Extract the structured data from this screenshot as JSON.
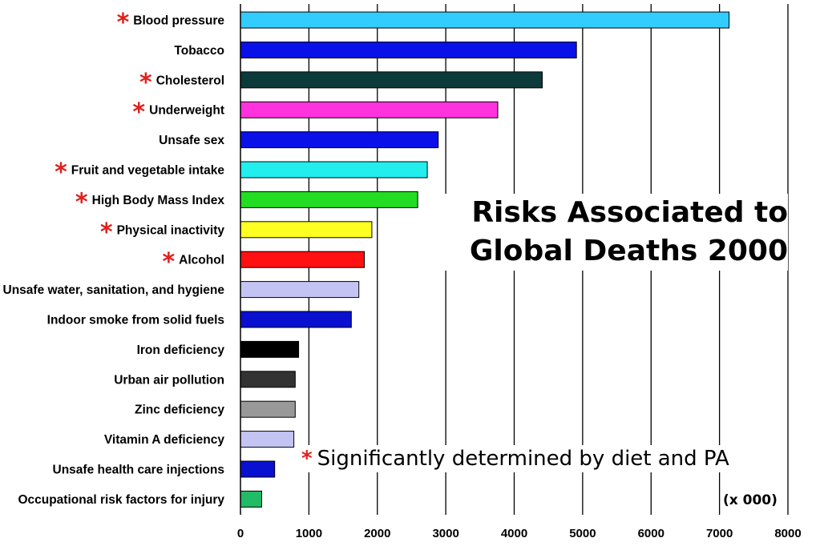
{
  "chart_data": {
    "type": "bar",
    "orientation": "horizontal",
    "title": "Risks Associated to Global Deaths 2000",
    "title_lines": [
      "Risks Associated to",
      "Global Deaths 2000"
    ],
    "categories": [
      "Blood pressure",
      "Tobacco",
      "Cholesterol",
      "Underweight",
      "Unsafe sex",
      "Fruit and vegetable intake",
      "High Body Mass Index",
      "Physical inactivity",
      "Alcohol",
      "Unsafe water, sanitation, and hygiene",
      "Indoor smoke from solid fuels",
      "Iron deficiency",
      "Urban air pollution",
      "Zinc deficiency",
      "Vitamin A deficiency",
      "Unsafe health care injections",
      "Occupational risk factors for injury"
    ],
    "values": [
      7140,
      4910,
      4410,
      3760,
      2890,
      2730,
      2590,
      1920,
      1810,
      1730,
      1620,
      850,
      800,
      800,
      780,
      500,
      310
    ],
    "starred": [
      true,
      false,
      true,
      true,
      false,
      true,
      true,
      true,
      true,
      false,
      false,
      false,
      false,
      false,
      false,
      false,
      false
    ],
    "colors": [
      "#33ccff",
      "#0a10e8",
      "#0b3a3a",
      "#ff33dd",
      "#0a10e8",
      "#22eeee",
      "#22dd22",
      "#ffff22",
      "#ff1111",
      "#c4c4f4",
      "#0a10d0",
      "#000000",
      "#333333",
      "#999999",
      "#c4c4f4",
      "#0a10d0",
      "#22bb66"
    ],
    "xlim": [
      0,
      8000
    ],
    "xticks": [
      0,
      1000,
      2000,
      3000,
      4000,
      5000,
      6000,
      7000,
      8000
    ],
    "xtick_labels": [
      "0",
      "1000",
      "2000",
      "3000",
      "4000",
      "5000",
      "6000",
      "7000",
      "8000"
    ],
    "unit_label": "(x 000)",
    "grid": "vertical",
    "footnote": {
      "marker": "*",
      "text": "Significantly determined by diet and PA"
    }
  }
}
